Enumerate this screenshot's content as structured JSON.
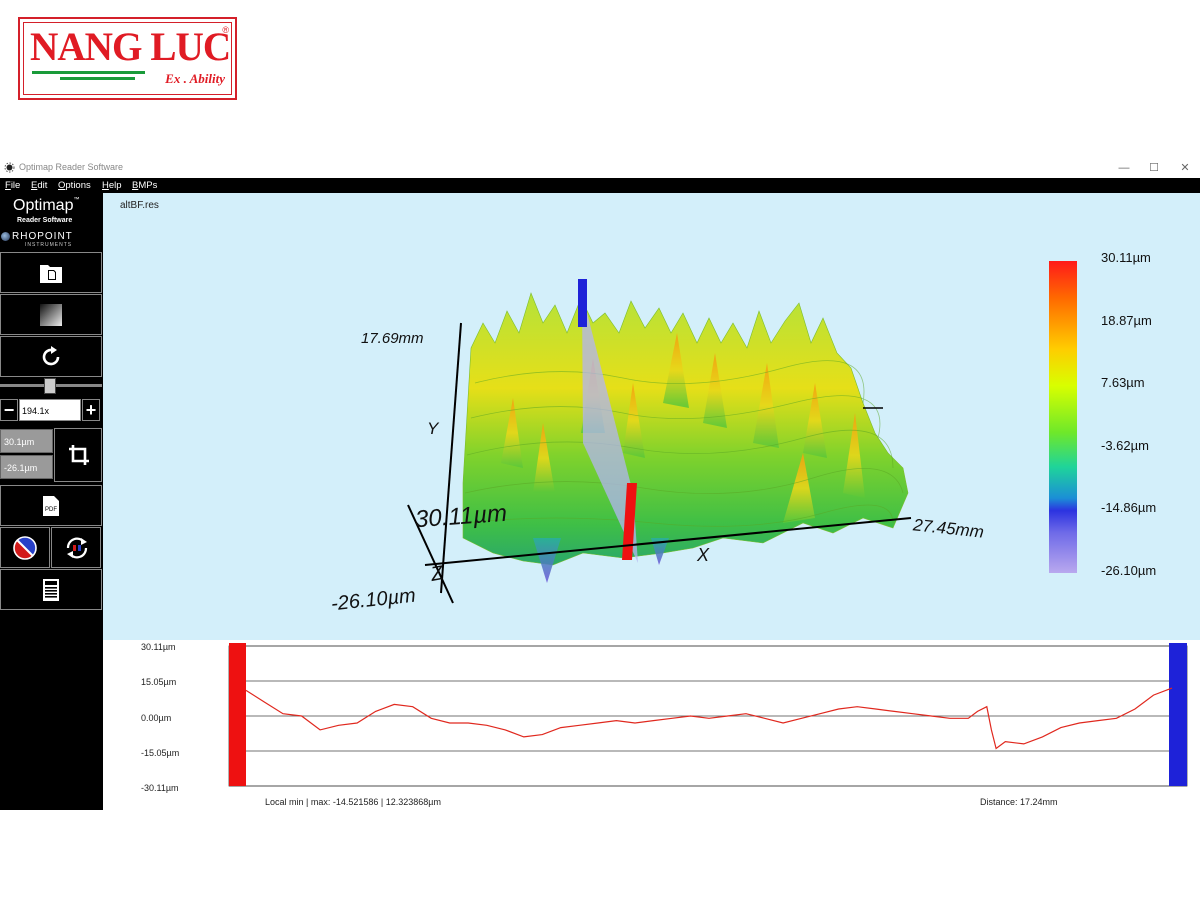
{
  "logo": {
    "brand": "NANG LUC",
    "tagline": "Ex . Ability",
    "registered": "®"
  },
  "window": {
    "title": "Optimap Reader Software",
    "controls": {
      "minimize": "—",
      "maximize": "☐",
      "close": "✕"
    }
  },
  "menu": {
    "items": [
      "File",
      "Edit",
      "Options",
      "Help",
      "BMPs"
    ]
  },
  "sidebar": {
    "brand_name": "Optimap",
    "brand_tm": "™",
    "brand_sub": "Reader Software",
    "company": "RHOPOINT",
    "company_sub": "INSTRUMENTS",
    "zoom_value": "194.1x",
    "zoom_minus": "−",
    "zoom_plus": "+",
    "range_max": "30.1µm",
    "range_min": "-26.1µm",
    "icons": [
      "open-file-icon",
      "shade-icon",
      "refresh-icon",
      "crop-icon",
      "pdf-icon",
      "color-palette-icon",
      "swap-icon",
      "calculator-icon"
    ],
    "pdf_text": "PDF"
  },
  "view3d": {
    "file_name": "altBF.res",
    "colorbar_labels": [
      "30.11µm",
      "18.87µm",
      "7.63µm",
      "-3.62µm",
      "-14.86µm",
      "-26.10µm"
    ],
    "axis_y_max": "17.69mm",
    "axis_x_max": "27.45mm",
    "axis_z_max": "30.11µm",
    "axis_z_min": "-26.10µm",
    "axis_x": "X",
    "axis_y": "Y",
    "axis_z": "Z",
    "colors": {
      "background": "#d3effa",
      "marker_red": "#ee1111",
      "marker_blue": "#1e22d8"
    }
  },
  "profile": {
    "y_ticks": [
      "30.11µm",
      "15.05µm",
      "0.00µm",
      "-15.05µm",
      "-30.11µm"
    ],
    "local_minmax": "Local min | max:  -14.521586 | 12.323868µm",
    "distance": "Distance: 17.24mm",
    "line_color": "#e0281e"
  },
  "chart_data": {
    "type": "line",
    "title": "",
    "xlabel": "",
    "ylabel": "",
    "ylim": [
      -30.11,
      30.11
    ],
    "yticks": [
      30.11,
      15.05,
      0.0,
      -15.05,
      -30.11
    ],
    "xlim": [
      0,
      100
    ],
    "series": [
      {
        "x": [
          0,
          2,
          4,
          6,
          8,
          10,
          12,
          14,
          16,
          18,
          20,
          22,
          24,
          26,
          28,
          30,
          32,
          34,
          36,
          38,
          40,
          42,
          44,
          46,
          48,
          50,
          52,
          54,
          56,
          58,
          60,
          62,
          64,
          66,
          68,
          70,
          72,
          74,
          76,
          78,
          79,
          80,
          80.5,
          81,
          82,
          84,
          86,
          88,
          90,
          92,
          94,
          96,
          98,
          100
        ],
        "values": [
          11,
          6,
          1,
          0,
          -6,
          -4,
          -3,
          2,
          5,
          4,
          -1,
          -3,
          -3,
          -4,
          -6,
          -9,
          -8,
          -5,
          -4,
          -3,
          -2,
          -3,
          -2,
          -1,
          0,
          -1,
          0,
          1,
          -1,
          -3,
          -1,
          1,
          3,
          4,
          3,
          2,
          1,
          0,
          -1,
          -1,
          2,
          4,
          -6,
          -14,
          -11,
          -12,
          -9,
          -5,
          -3,
          -2,
          -1,
          3,
          9,
          12
        ]
      }
    ]
  }
}
